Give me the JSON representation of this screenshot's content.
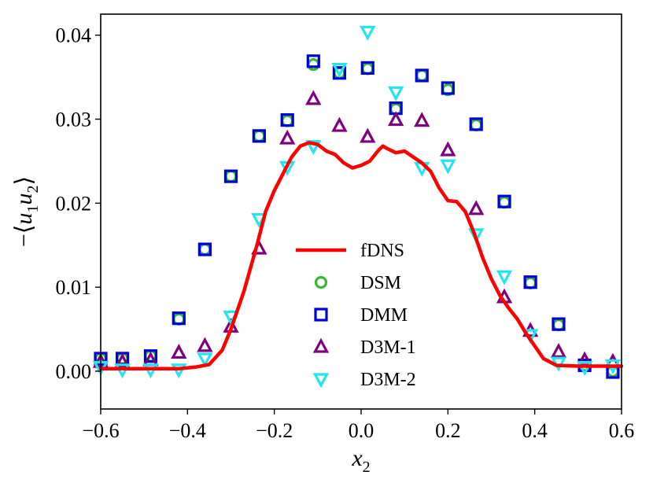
{
  "chart_data": {
    "type": "scatter",
    "xlabel": {
      "base": "x",
      "sub": "2"
    },
    "ylabel": {
      "prefix": "−⟨",
      "u": "u",
      "sub1": "1",
      "sub2": "2",
      "suffix": "⟩"
    },
    "xlim": [
      -0.6,
      0.6
    ],
    "ylim": [
      -0.0045,
      0.0425
    ],
    "xticks": [
      -0.6,
      -0.4,
      -0.2,
      0.0,
      0.2,
      0.4,
      0.6
    ],
    "xtick_labels": [
      "−0.6",
      "−0.4",
      "−0.2",
      "0.0",
      "0.2",
      "0.4",
      "0.6"
    ],
    "yticks": [
      0.0,
      0.01,
      0.02,
      0.03,
      0.04
    ],
    "ytick_labels": [
      "0.00",
      "0.01",
      "0.02",
      "0.03",
      "0.04"
    ],
    "grid": false,
    "legend_position": "center",
    "series": [
      {
        "name": "fDNS",
        "kind": "line",
        "color": "#ff0000",
        "points": [
          [
            -0.6,
            0.0003
          ],
          [
            -0.5,
            0.0003
          ],
          [
            -0.42,
            0.0003
          ],
          [
            -0.38,
            0.0005
          ],
          [
            -0.35,
            0.0008
          ],
          [
            -0.32,
            0.0025
          ],
          [
            -0.3,
            0.005
          ],
          [
            -0.27,
            0.0095
          ],
          [
            -0.24,
            0.015
          ],
          [
            -0.22,
            0.019
          ],
          [
            -0.2,
            0.0215
          ],
          [
            -0.18,
            0.0235
          ],
          [
            -0.16,
            0.0255
          ],
          [
            -0.14,
            0.0268
          ],
          [
            -0.12,
            0.0272
          ],
          [
            -0.1,
            0.027
          ],
          [
            -0.08,
            0.0262
          ],
          [
            -0.06,
            0.0258
          ],
          [
            -0.04,
            0.0248
          ],
          [
            -0.02,
            0.0242
          ],
          [
            0.0,
            0.0245
          ],
          [
            0.02,
            0.025
          ],
          [
            0.04,
            0.0263
          ],
          [
            0.05,
            0.0268
          ],
          [
            0.06,
            0.0265
          ],
          [
            0.08,
            0.026
          ],
          [
            0.1,
            0.0262
          ],
          [
            0.12,
            0.0255
          ],
          [
            0.14,
            0.0248
          ],
          [
            0.16,
            0.0238
          ],
          [
            0.18,
            0.0218
          ],
          [
            0.2,
            0.0203
          ],
          [
            0.22,
            0.0202
          ],
          [
            0.24,
            0.019
          ],
          [
            0.26,
            0.0165
          ],
          [
            0.28,
            0.0135
          ],
          [
            0.3,
            0.011
          ],
          [
            0.32,
            0.009
          ],
          [
            0.34,
            0.0075
          ],
          [
            0.36,
            0.0062
          ],
          [
            0.38,
            0.0045
          ],
          [
            0.4,
            0.003
          ],
          [
            0.42,
            0.0015
          ],
          [
            0.45,
            0.0007
          ],
          [
            0.5,
            0.0006
          ],
          [
            0.6,
            0.0006
          ]
        ]
      },
      {
        "name": "DSM",
        "kind": "marker",
        "marker": "circle",
        "color": "#33bb33",
        "points": [
          [
            -0.6,
            0.0015
          ],
          [
            -0.55,
            0.0015
          ],
          [
            -0.485,
            0.0018
          ],
          [
            -0.42,
            0.0062
          ],
          [
            -0.36,
            0.0145
          ],
          [
            -0.3,
            0.0232
          ],
          [
            -0.235,
            0.028
          ],
          [
            -0.17,
            0.0298
          ],
          [
            -0.11,
            0.0365
          ],
          [
            -0.05,
            0.0355
          ],
          [
            0.015,
            0.036
          ],
          [
            0.08,
            0.0312
          ],
          [
            0.14,
            0.0352
          ],
          [
            0.2,
            0.0335
          ],
          [
            0.265,
            0.0293
          ],
          [
            0.33,
            0.0201
          ],
          [
            0.39,
            0.0105
          ],
          [
            0.455,
            0.0055
          ],
          [
            0.515,
            0.0007
          ],
          [
            0.58,
            0.0
          ]
        ]
      },
      {
        "name": "DMM",
        "kind": "marker",
        "marker": "square",
        "color": "#0000dd",
        "points": [
          [
            -0.6,
            0.0015
          ],
          [
            -0.55,
            0.0015
          ],
          [
            -0.485,
            0.0018
          ],
          [
            -0.42,
            0.0063
          ],
          [
            -0.36,
            0.0145
          ],
          [
            -0.3,
            0.0232
          ],
          [
            -0.235,
            0.028
          ],
          [
            -0.17,
            0.0299
          ],
          [
            -0.11,
            0.0369
          ],
          [
            -0.05,
            0.0355
          ],
          [
            0.015,
            0.0361
          ],
          [
            0.08,
            0.0313
          ],
          [
            0.14,
            0.0352
          ],
          [
            0.2,
            0.0337
          ],
          [
            0.265,
            0.0294
          ],
          [
            0.33,
            0.0202
          ],
          [
            0.39,
            0.0106
          ],
          [
            0.455,
            0.0056
          ],
          [
            0.515,
            0.0007
          ],
          [
            0.58,
            -0.0001
          ]
        ]
      },
      {
        "name": "D3M-1",
        "kind": "marker",
        "marker": "triangle-up",
        "color": "#7f007f",
        "points": [
          [
            -0.6,
            0.0011
          ],
          [
            -0.55,
            0.0011
          ],
          [
            -0.485,
            0.0013
          ],
          [
            -0.42,
            0.0022
          ],
          [
            -0.36,
            0.003
          ],
          [
            -0.3,
            0.0053
          ],
          [
            -0.235,
            0.0146
          ],
          [
            -0.17,
            0.0277
          ],
          [
            -0.11,
            0.0324
          ],
          [
            -0.05,
            0.0292
          ],
          [
            0.015,
            0.0279
          ],
          [
            0.08,
            0.0299
          ],
          [
            0.14,
            0.0298
          ],
          [
            0.2,
            0.0263
          ],
          [
            0.265,
            0.0193
          ],
          [
            0.33,
            0.0088
          ],
          [
            0.39,
            0.0048
          ],
          [
            0.455,
            0.0023
          ],
          [
            0.515,
            0.0013
          ],
          [
            0.58,
            0.0011
          ]
        ]
      },
      {
        "name": "D3M-2",
        "kind": "marker",
        "marker": "triangle-down",
        "color": "#22e5ee",
        "points": [
          [
            -0.6,
            0.0005
          ],
          [
            -0.55,
            0.0002
          ],
          [
            -0.485,
            0.0002
          ],
          [
            -0.42,
            0.0002
          ],
          [
            -0.36,
            0.0015
          ],
          [
            -0.3,
            0.0065
          ],
          [
            -0.235,
            0.0181
          ],
          [
            -0.17,
            0.0243
          ],
          [
            -0.11,
            0.0268
          ],
          [
            -0.05,
            0.036
          ],
          [
            0.015,
            0.0404
          ],
          [
            0.08,
            0.0332
          ],
          [
            0.14,
            0.0242
          ],
          [
            0.2,
            0.0245
          ],
          [
            0.265,
            0.0163
          ],
          [
            0.33,
            0.0113
          ],
          [
            0.39,
            0.0043
          ],
          [
            0.455,
            0.001
          ],
          [
            0.515,
            0.0005
          ],
          [
            0.58,
            0.0007
          ]
        ]
      }
    ]
  }
}
